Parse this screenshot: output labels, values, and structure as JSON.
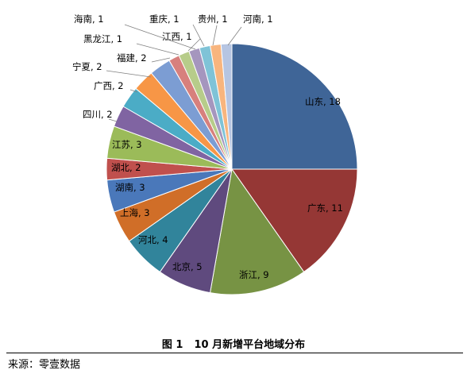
{
  "chart_data": {
    "type": "pie",
    "title": "",
    "categories": [
      "山东",
      "广东",
      "浙江",
      "北京",
      "河北",
      "上海",
      "湖南",
      "湖北",
      "江苏",
      "四川",
      "广西",
      "宁夏",
      "福建",
      "黑龙江",
      "江西",
      "海南",
      "重庆",
      "贵州",
      "河南"
    ],
    "values": [
      18,
      11,
      9,
      5,
      4,
      3,
      3,
      2,
      3,
      2,
      2,
      2,
      2,
      1,
      1,
      1,
      1,
      1,
      1
    ],
    "labels": [
      "山东, 18",
      "广东, 11",
      "浙江, 9",
      "北京, 5",
      "河北, 4",
      "上海, 3",
      "湖南, 3",
      "湖北, 2",
      "江苏, 3",
      "四川, 2",
      "广西, 2",
      "宁夏, 2",
      "福建, 2",
      "黑龙江, 1",
      "江西, 1",
      "海南, 1",
      "重庆, 1",
      "贵州, 1",
      "河南, 1"
    ],
    "colors": [
      "#3F6597",
      "#953735",
      "#779344",
      "#5F4A7E",
      "#31849B",
      "#D06E28",
      "#4A78BA",
      "#C0504D",
      "#9BBB59",
      "#8064A2",
      "#4BACC6",
      "#F79646",
      "#7C9DD3",
      "#D7807D",
      "#B7CC8A",
      "#A596BE",
      "#7FC3D7",
      "#F8B57E",
      "#B6C5E2"
    ],
    "start_angle": 0,
    "direction": "clockwise",
    "legend": "none"
  },
  "caption": {
    "number": "图 1",
    "text": "10 月新增平台地域分布"
  },
  "source": "来源：零壹数据"
}
